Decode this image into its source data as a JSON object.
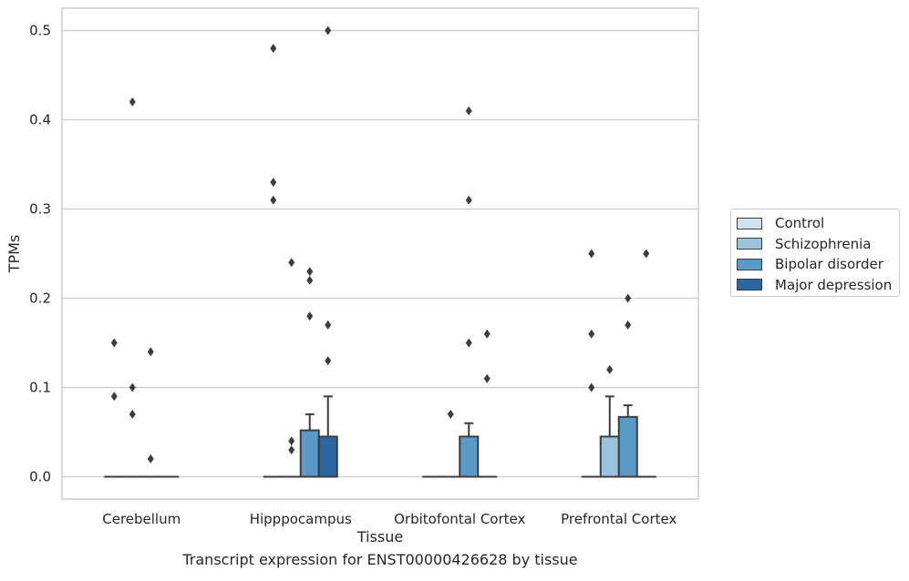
{
  "chart_data": {
    "type": "box",
    "title": "Transcript expression for ENST00000426628 by tissue",
    "xlabel": "Tissue",
    "ylabel": "TPMs",
    "ylim": [
      -0.025,
      0.525
    ],
    "yticks": [
      "0.0",
      "0.1",
      "0.2",
      "0.3",
      "0.4",
      "0.5"
    ],
    "grid": true,
    "legend_placement": "right",
    "categories": [
      "Cerebellum",
      "Hipppocampus",
      "Orbitofontal Cortex",
      "Prefrontal Cortex"
    ],
    "series": [
      {
        "name": "Control",
        "color": "#d1e1f0",
        "boxes": [
          {
            "q1": 0,
            "median": 0,
            "q3": 0,
            "whisker_low": 0,
            "whisker_high": 0,
            "outliers": [
              0.15,
              0.09
            ]
          },
          {
            "q1": 0,
            "median": 0,
            "q3": 0,
            "whisker_low": 0,
            "whisker_high": 0,
            "outliers": [
              0.48,
              0.33,
              0.31
            ]
          },
          {
            "q1": 0,
            "median": 0,
            "q3": 0,
            "whisker_low": 0,
            "whisker_high": 0,
            "outliers": []
          },
          {
            "q1": 0,
            "median": 0,
            "q3": 0,
            "whisker_low": 0,
            "whisker_high": 0,
            "outliers": [
              0.25,
              0.16,
              0.1
            ]
          }
        ]
      },
      {
        "name": "Schizophrenia",
        "color": "#9ac3dd",
        "boxes": [
          {
            "q1": 0,
            "median": 0,
            "q3": 0,
            "whisker_low": 0,
            "whisker_high": 0,
            "outliers": [
              0.42,
              0.1,
              0.07
            ]
          },
          {
            "q1": 0,
            "median": 0,
            "q3": 0,
            "whisker_low": 0,
            "whisker_high": 0,
            "outliers": [
              0.24,
              0.04,
              0.03
            ]
          },
          {
            "q1": 0,
            "median": 0,
            "q3": 0,
            "whisker_low": 0,
            "whisker_high": 0,
            "outliers": [
              0.07
            ]
          },
          {
            "q1": 0,
            "median": 0,
            "q3": 0.045,
            "whisker_low": 0,
            "whisker_high": 0.09,
            "outliers": [
              0.12
            ]
          }
        ]
      },
      {
        "name": "Bipolar disorder",
        "color": "#5a9ac6",
        "boxes": [
          {
            "q1": 0,
            "median": 0,
            "q3": 0,
            "whisker_low": 0,
            "whisker_high": 0,
            "outliers": [
              0.14,
              0.02
            ]
          },
          {
            "q1": 0,
            "median": 0,
            "q3": 0.052,
            "whisker_low": 0,
            "whisker_high": 0.07,
            "outliers": [
              0.23,
              0.22,
              0.18
            ]
          },
          {
            "q1": 0,
            "median": 0,
            "q3": 0.045,
            "whisker_low": 0,
            "whisker_high": 0.06,
            "outliers": [
              0.41,
              0.31,
              0.15
            ]
          },
          {
            "q1": 0,
            "median": 0,
            "q3": 0.067,
            "whisker_low": 0,
            "whisker_high": 0.08,
            "outliers": [
              0.2,
              0.17
            ]
          }
        ]
      },
      {
        "name": "Major depression",
        "color": "#2d67a2",
        "boxes": [
          {
            "q1": 0,
            "median": 0,
            "q3": 0,
            "whisker_low": 0,
            "whisker_high": 0,
            "outliers": []
          },
          {
            "q1": 0,
            "median": 0,
            "q3": 0.045,
            "whisker_low": 0,
            "whisker_high": 0.09,
            "outliers": [
              0.5,
              0.17,
              0.13
            ]
          },
          {
            "q1": 0,
            "median": 0,
            "q3": 0,
            "whisker_low": 0,
            "whisker_high": 0,
            "outliers": [
              0.16,
              0.11
            ]
          },
          {
            "q1": 0,
            "median": 0,
            "q3": 0,
            "whisker_low": 0,
            "whisker_high": 0,
            "outliers": [
              0.25
            ]
          }
        ]
      }
    ]
  }
}
